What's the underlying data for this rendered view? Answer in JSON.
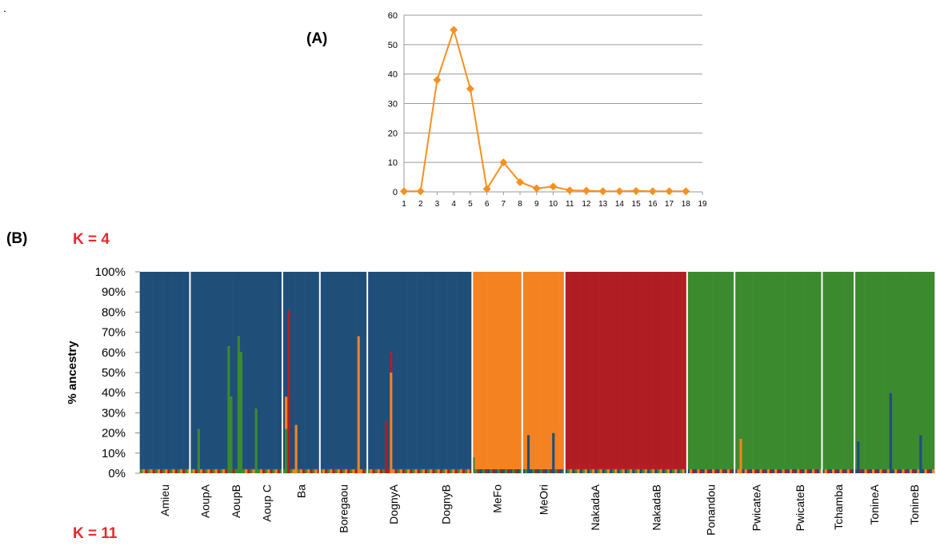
{
  "page": {
    "stray_mark": "."
  },
  "panel_a": {
    "label": "(A)"
  },
  "panel_b": {
    "label": "(B)",
    "k_top": "K = 4",
    "k_bottom": "K = 11"
  },
  "chart_data": [
    {
      "type": "line",
      "title": "",
      "xlabel": "",
      "ylabel": "",
      "x": [
        1,
        2,
        3,
        4,
        5,
        6,
        7,
        8,
        9,
        10,
        11,
        12,
        13,
        14,
        15,
        16,
        17,
        18
      ],
      "x_ticks": [
        1,
        2,
        3,
        4,
        5,
        6,
        7,
        8,
        9,
        10,
        11,
        12,
        13,
        14,
        15,
        16,
        17,
        18,
        19
      ],
      "series": [
        {
          "values": [
            0.2,
            0.2,
            38,
            55,
            35,
            1,
            10,
            3.3,
            1.2,
            1.8,
            0.5,
            0.4,
            0.2,
            0.2,
            0.3,
            0.2,
            0.2,
            0.2
          ]
        }
      ],
      "ylim": [
        0,
        60
      ],
      "yticks": [
        0,
        10,
        20,
        30,
        40,
        50,
        60
      ],
      "grid": true,
      "marker": "diamond",
      "color": "#f7901e"
    },
    {
      "type": "bar",
      "stacked": true,
      "ylabel": "% ancestry",
      "ylim": [
        0,
        100
      ],
      "yticks": [
        "0%",
        "10%",
        "20%",
        "30%",
        "40%",
        "50%",
        "60%",
        "70%",
        "80%",
        "90%",
        "100%"
      ],
      "cluster_colors": {
        "blue": "#1f4e79",
        "green": "#3b8a2e",
        "orange": "#f58220",
        "red": "#b01e24"
      },
      "groups": [
        {
          "name": "Amieu",
          "labels": [
            "Amieu"
          ],
          "dominant": "blue",
          "n": 20
        },
        {
          "name": "Aoup",
          "labels": [
            "AoupA",
            "AoupB",
            "Aoup C"
          ],
          "dominant": "blue",
          "n": 37
        },
        {
          "name": "Ba",
          "labels": [
            "Ba"
          ],
          "dominant": "blue",
          "n": 15
        },
        {
          "name": "Boregaou",
          "labels": [
            "Boregaou"
          ],
          "dominant": "blue",
          "n": 19
        },
        {
          "name": "Dogny",
          "labels": [
            "DognyA",
            "DognyB"
          ],
          "dominant": "blue",
          "n": 42
        },
        {
          "name": "MeFo",
          "labels": [
            "MeFo"
          ],
          "dominant": "orange",
          "n": 20
        },
        {
          "name": "MeOri",
          "labels": [
            "MeOri"
          ],
          "dominant": "orange",
          "n": 17
        },
        {
          "name": "Nakada",
          "labels": [
            "NakadaA",
            "NakadaB"
          ],
          "dominant": "red",
          "n": 49
        },
        {
          "name": "Ponandou",
          "labels": [
            "Ponandou"
          ],
          "dominant": "green",
          "n": 19
        },
        {
          "name": "Pwicate",
          "labels": [
            "PwicateA",
            "PwicateB"
          ],
          "dominant": "green",
          "n": 35
        },
        {
          "name": "Tchamba",
          "labels": [
            "Tchamba"
          ],
          "dominant": "green",
          "n": 13
        },
        {
          "name": "Tonine",
          "labels": [
            "TonineA",
            "TonineB"
          ],
          "dominant": "green",
          "n": 32
        }
      ],
      "notable_bars": [
        {
          "group": "Aoup",
          "index": 3,
          "green": 22
        },
        {
          "group": "Aoup",
          "index": 15,
          "green": 63
        },
        {
          "group": "Aoup",
          "index": 16,
          "green": 38
        },
        {
          "group": "Aoup",
          "index": 19,
          "green": 68
        },
        {
          "group": "Aoup",
          "index": 20,
          "green": 60
        },
        {
          "group": "Aoup",
          "index": 26,
          "green": 32
        },
        {
          "group": "Ba",
          "index": 1,
          "orange": 16,
          "green": 22
        },
        {
          "group": "Ba",
          "index": 2,
          "red": 81
        },
        {
          "group": "Ba",
          "index": 5,
          "orange": 24
        },
        {
          "group": "Boregaou",
          "index": 15,
          "orange": 68
        },
        {
          "group": "Dogny",
          "index": 7,
          "red": 26
        },
        {
          "group": "Dogny",
          "index": 9,
          "orange": 50,
          "red": 10
        },
        {
          "group": "MeFo",
          "index": 0,
          "green": 8
        },
        {
          "group": "MeOri",
          "index": 2,
          "blue": 19
        },
        {
          "group": "MeOri",
          "index": 12,
          "blue": 20
        },
        {
          "group": "PwicateA",
          "index": 2,
          "orange": 17
        },
        {
          "group": "TonineA",
          "index": 1,
          "blue": 16
        },
        {
          "group": "TonineA",
          "index": 14,
          "blue": 40
        },
        {
          "group": "TonineA",
          "index": 26,
          "blue": 19
        }
      ]
    }
  ]
}
